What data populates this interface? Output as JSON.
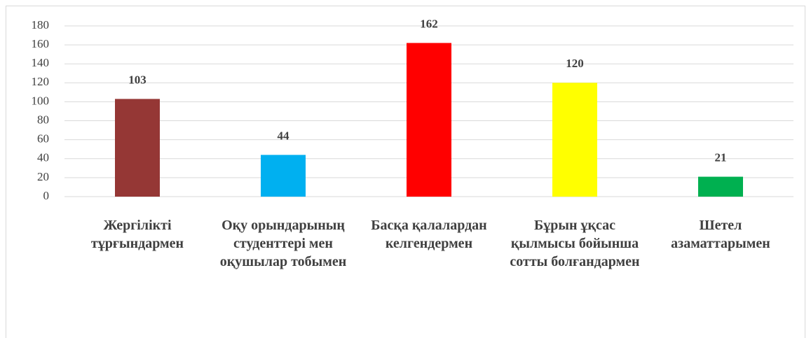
{
  "chart_data": {
    "type": "bar",
    "categories": [
      "Жергілікті тұрғындармен",
      "Оқу орындарының студенттері мен оқушылар тобымен",
      "Басқа қалалардан келгендермен",
      "Бұрын ұқсас қылмысы бойынша сотты болғандармен",
      "Шетел азаматтарымен"
    ],
    "values": [
      103,
      44,
      162,
      120,
      21
    ],
    "colors": [
      "#953735",
      "#00b0f0",
      "#ff0000",
      "#ffff00",
      "#00b050"
    ],
    "ylim": [
      0,
      180
    ],
    "yticks": [
      0,
      20,
      40,
      60,
      80,
      100,
      120,
      140,
      160,
      180
    ],
    "grid": true
  }
}
